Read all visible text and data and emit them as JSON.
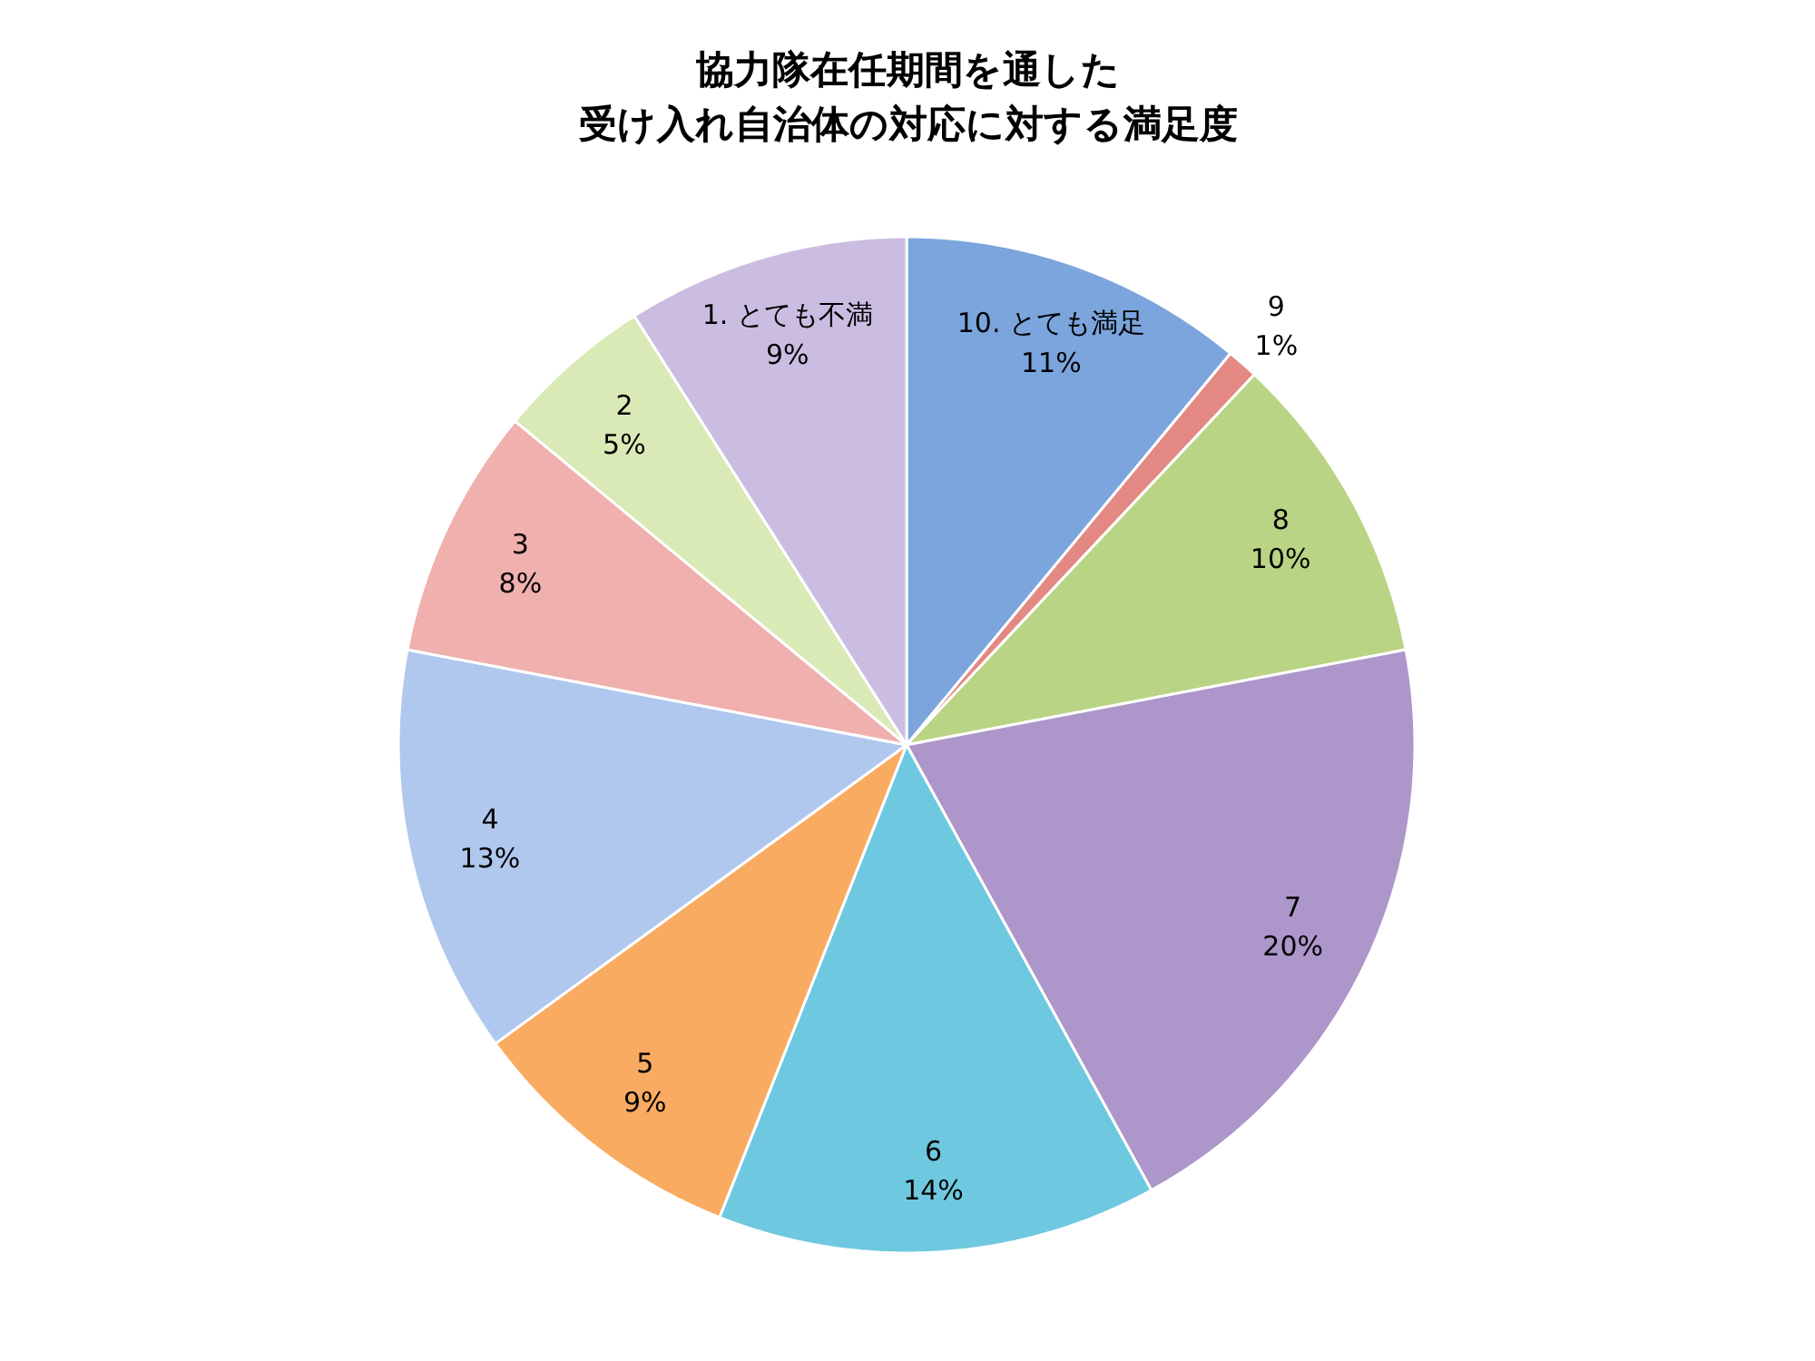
{
  "chart_data": {
    "type": "pie",
    "title": "協力隊在任期間を通した受け入れ自治体の対応に対する満足度",
    "categories": [
      "10. とても満足",
      "9",
      "8",
      "7",
      "6",
      "5",
      "4",
      "3",
      "2",
      "1. とても不満"
    ],
    "values": [
      11,
      1,
      10,
      20,
      14,
      9,
      13,
      8,
      5,
      9
    ],
    "value_labels": [
      "11%",
      "1%",
      "10%",
      "20%",
      "14%",
      "9%",
      "13%",
      "8%",
      "5%",
      "9%"
    ],
    "colors": [
      "#7ba5dc",
      "#e48884",
      "#b9d484",
      "#ad96c9",
      "#6ec8e0",
      "#f9ab62",
      "#b0c8ee",
      "#efb0ae",
      "#d9eab6",
      "#cbbde2"
    ]
  }
}
